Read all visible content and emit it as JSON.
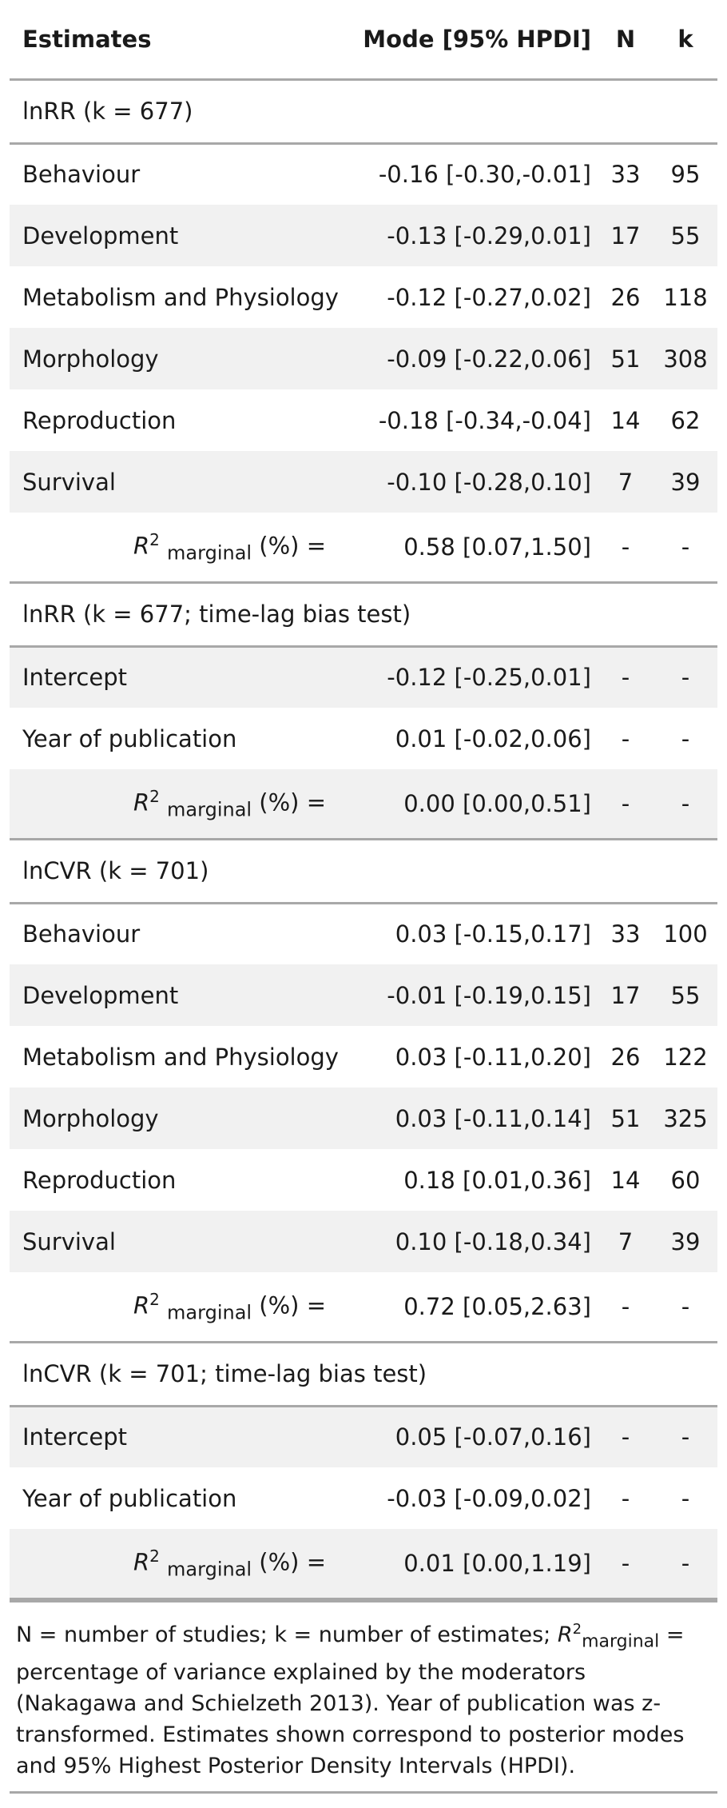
{
  "header": {
    "estimates": "Estimates",
    "mode": "Mode [95% HPDI]",
    "n": "N",
    "k": "k"
  },
  "r2_label": {
    "r": "R",
    "sup": "2",
    "sub": "marginal",
    "suffix": " (%) ="
  },
  "sections": [
    {
      "title": "lnRR (k = 677)",
      "rows": [
        {
          "label": "Behaviour",
          "est": "-0.16 [-0.30,-0.01]",
          "n": "33",
          "k": "95"
        },
        {
          "label": "Development",
          "est": "-0.13 [-0.29,0.01]",
          "n": "17",
          "k": "55"
        },
        {
          "label": "Metabolism and Physiology",
          "est": "-0.12 [-0.27,0.02]",
          "n": "26",
          "k": "118"
        },
        {
          "label": "Morphology",
          "est": "-0.09 [-0.22,0.06]",
          "n": "51",
          "k": "308"
        },
        {
          "label": "Reproduction",
          "est": "-0.18 [-0.34,-0.04]",
          "n": "14",
          "k": "62"
        },
        {
          "label": "Survival",
          "est": "-0.10 [-0.28,0.10]",
          "n": "7",
          "k": "39"
        }
      ],
      "r2": {
        "est": "0.58 [0.07,1.50]",
        "n": "-",
        "k": "-"
      }
    },
    {
      "title": "lnRR (k = 677; time-lag bias test)",
      "rows": [
        {
          "label": "Intercept",
          "est": "-0.12 [-0.25,0.01]",
          "n": "-",
          "k": "-"
        },
        {
          "label": "Year of publication",
          "est": "0.01 [-0.02,0.06]",
          "n": "-",
          "k": "-"
        }
      ],
      "r2": {
        "est": "0.00 [0.00,0.51]",
        "n": "-",
        "k": "-"
      }
    },
    {
      "title": "lnCVR (k = 701)",
      "rows": [
        {
          "label": "Behaviour",
          "est": "0.03 [-0.15,0.17]",
          "n": "33",
          "k": "100"
        },
        {
          "label": "Development",
          "est": "-0.01 [-0.19,0.15]",
          "n": "17",
          "k": "55"
        },
        {
          "label": "Metabolism and Physiology",
          "est": "0.03 [-0.11,0.20]",
          "n": "26",
          "k": "122"
        },
        {
          "label": "Morphology",
          "est": "0.03 [-0.11,0.14]",
          "n": "51",
          "k": "325"
        },
        {
          "label": "Reproduction",
          "est": "0.18 [0.01,0.36]",
          "n": "14",
          "k": "60"
        },
        {
          "label": "Survival",
          "est": "0.10 [-0.18,0.34]",
          "n": "7",
          "k": "39"
        }
      ],
      "r2": {
        "est": "0.72 [0.05,2.63]",
        "n": "-",
        "k": "-"
      }
    },
    {
      "title": "lnCVR (k = 701; time-lag bias test)",
      "rows": [
        {
          "label": "Intercept",
          "est": "0.05 [-0.07,0.16]",
          "n": "-",
          "k": "-"
        },
        {
          "label": "Year of publication",
          "est": "-0.03 [-0.09,0.02]",
          "n": "-",
          "k": "-"
        }
      ],
      "r2": {
        "est": "0.01 [0.00,1.19]",
        "n": "-",
        "k": "-"
      }
    }
  ],
  "notes": {
    "part1": "N = number of studies; k = number of estimates; ",
    "r": "R",
    "sup": "2",
    "sub": "marginal",
    "part2": " = percentage of variance explained by the moderators (Nakagawa and Schielzeth 2013). Year of publication was z-transformed. Estimates shown correspond to posterior modes and 95% Highest Posterior Density Intervals (HPDI)."
  }
}
